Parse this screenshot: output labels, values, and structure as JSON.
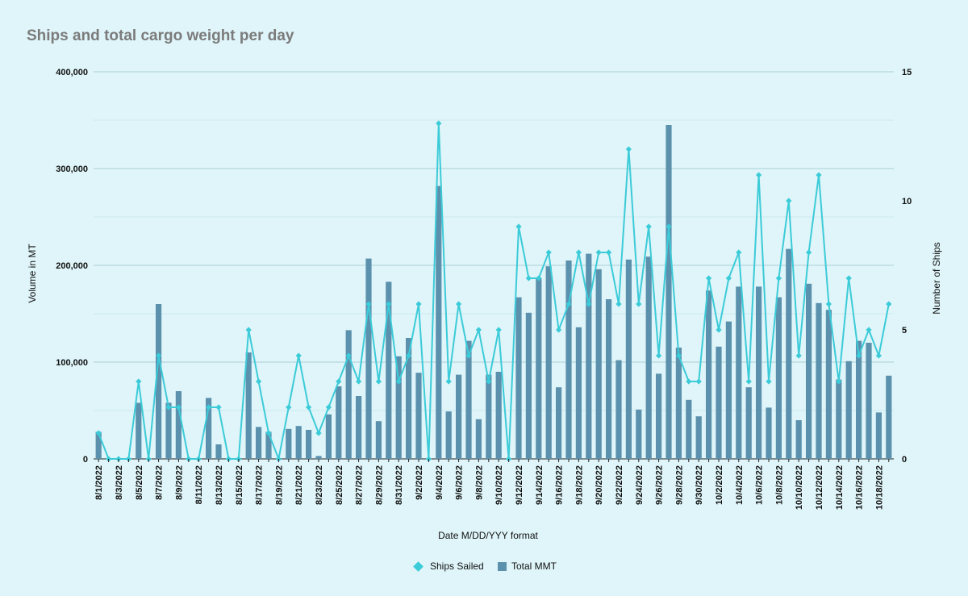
{
  "chart_data": {
    "type": "bar",
    "title": "Ships and total cargo weight per day",
    "xlabel": "Date M/DD/YYY format",
    "ylabel": "Volume in MT",
    "y2label": "Number of Ships",
    "ylim": [
      0,
      400000
    ],
    "y2lim": [
      0,
      15
    ],
    "y_ticks": [
      "0",
      "100,000",
      "200,000",
      "300,000",
      "400,000"
    ],
    "y2_ticks": [
      "0",
      "5",
      "10",
      "15"
    ],
    "grid": true,
    "legend_position": "bottom",
    "colors": {
      "Total MMT": "#5b91ad",
      "Ships Sailed": "#3ccbd8"
    },
    "categories": [
      "8/1/2022",
      "8/2/2022",
      "8/3/2022",
      "8/4/2022",
      "8/5/2022",
      "8/6/2022",
      "8/7/2022",
      "8/8/2022",
      "8/9/2022",
      "8/10/2022",
      "8/11/2022",
      "8/12/2022",
      "8/13/2022",
      "8/14/2022",
      "8/15/2022",
      "8/16/2022",
      "8/17/2022",
      "8/18/2022",
      "8/19/2022",
      "8/20/2022",
      "8/21/2022",
      "8/22/2022",
      "8/23/2022",
      "8/24/2022",
      "8/25/2022",
      "8/26/2022",
      "8/27/2022",
      "8/28/2022",
      "8/29/2022",
      "8/30/2022",
      "8/31/2022",
      "9/1/2022",
      "9/2/2022",
      "9/3/2022",
      "9/4/2022",
      "9/5/2022",
      "9/6/2022",
      "9/7/2022",
      "9/8/2022",
      "9/9/2022",
      "9/10/2022",
      "9/11/2022",
      "9/12/2022",
      "9/13/2022",
      "9/14/2022",
      "9/15/2022",
      "9/16/2022",
      "9/17/2022",
      "9/18/2022",
      "9/19/2022",
      "9/20/2022",
      "9/21/2022",
      "9/22/2022",
      "9/23/2022",
      "9/24/2022",
      "9/25/2022",
      "9/26/2022",
      "9/27/2022",
      "9/28/2022",
      "9/29/2022",
      "9/30/2022",
      "10/1/2022",
      "10/2/2022",
      "10/3/2022",
      "10/4/2022",
      "10/5/2022",
      "10/6/2022",
      "10/7/2022",
      "10/8/2022",
      "10/9/2022",
      "10/10/2022",
      "10/11/2022",
      "10/12/2022",
      "10/13/2022",
      "10/14/2022",
      "10/15/2022",
      "10/16/2022",
      "10/17/2022",
      "10/18/2022",
      "10/19/2022"
    ],
    "x_tick_labels": [
      "8/1/2022",
      "8/3/2022",
      "8/5/2022",
      "8/7/2022",
      "8/9/2022",
      "8/11/2022",
      "8/13/2022",
      "8/15/2022",
      "8/17/2022",
      "8/19/2022",
      "8/21/2022",
      "8/23/2022",
      "8/25/2022",
      "8/27/2022",
      "8/29/2022",
      "8/31/2022",
      "9/2/2022",
      "9/4/2022",
      "9/6/2022",
      "9/8/2022",
      "9/10/2022",
      "9/12/2022",
      "9/14/2022",
      "9/16/2022",
      "9/18/2022",
      "9/20/2022",
      "9/22/2022",
      "9/24/2022",
      "9/26/2022",
      "9/28/2022",
      "9/30/2022",
      "10/2/2022",
      "10/4/2022",
      "10/6/2022",
      "10/8/2022",
      "10/10/2022",
      "10/12/2022",
      "10/14/2022",
      "10/16/2022",
      "10/18/2022"
    ],
    "series": [
      {
        "name": "Total MMT",
        "type": "bar",
        "axis": "left",
        "values": [
          28000,
          0,
          0,
          0,
          58000,
          0,
          160000,
          58000,
          70000,
          0,
          0,
          63000,
          15000,
          0,
          0,
          110000,
          33000,
          28000,
          0,
          31000,
          34000,
          30000,
          3000,
          46000,
          75000,
          133000,
          65000,
          207000,
          39000,
          183000,
          106000,
          125000,
          89000,
          0,
          282000,
          49000,
          87000,
          122000,
          41000,
          87000,
          90000,
          0,
          167000,
          151000,
          187000,
          199000,
          74000,
          205000,
          136000,
          212000,
          196000,
          165000,
          102000,
          206000,
          51000,
          209000,
          88000,
          345000,
          115000,
          61000,
          44000,
          174000,
          116000,
          142000,
          178000,
          74000,
          178000,
          53000,
          167000,
          217000,
          40000,
          181000,
          161000,
          154000,
          82000,
          101000,
          122000,
          120000,
          48000,
          86000
        ]
      },
      {
        "name": "Ships Sailed",
        "type": "line",
        "axis": "right",
        "values": [
          1,
          0,
          0,
          0,
          3,
          0,
          4,
          2,
          2,
          0,
          0,
          2,
          2,
          0,
          0,
          5,
          3,
          1,
          0,
          2,
          4,
          2,
          1,
          2,
          3,
          4,
          3,
          6,
          3,
          6,
          3,
          4,
          6,
          0,
          13,
          3,
          6,
          4,
          5,
          3,
          5,
          0,
          9,
          7,
          7,
          8,
          5,
          6,
          8,
          6,
          8,
          8,
          6,
          12,
          6,
          9,
          4,
          9,
          4,
          3,
          3,
          7,
          5,
          7,
          8,
          3,
          11,
          3,
          7,
          10,
          4,
          8,
          11,
          6,
          3,
          7,
          4,
          5,
          4,
          6
        ]
      }
    ]
  }
}
